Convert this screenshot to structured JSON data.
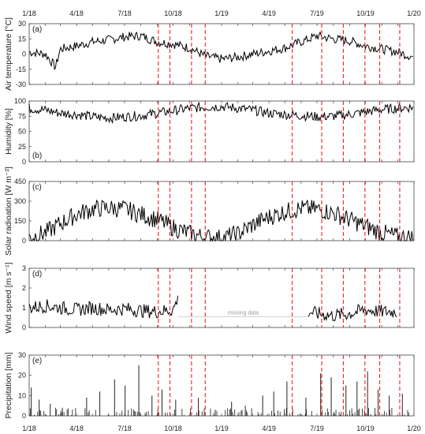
{
  "chart_data": {
    "type": "line",
    "x_tick_labels": [
      "1/18",
      "4/18",
      "7/18",
      "10/18",
      "1/19",
      "4/19",
      "7/19",
      "10/19",
      "1/20"
    ],
    "x_range": [
      "2018-01-01",
      "2020-01-01"
    ],
    "event_lines": {
      "color": "#e8232a",
      "dates": [
        "2018-09-03",
        "2018-09-25",
        "2018-11-05",
        "2018-12-01",
        "2019-05-15",
        "2019-07-10",
        "2019-08-20",
        "2019-09-30",
        "2019-10-28",
        "2019-12-05"
      ]
    },
    "panels": [
      {
        "id": "air_temp",
        "letter": "(a)",
        "ylabel": "Air temperature [°C]",
        "ylim": [
          -30,
          30
        ],
        "yticks": [
          "30",
          "15",
          "0",
          "-15",
          "-30"
        ],
        "style": "line",
        "series": {
          "x": [
            "2018-01-01",
            "2018-02-01",
            "2018-02-20",
            "2018-03-01",
            "2018-04-01",
            "2018-05-01",
            "2018-06-01",
            "2018-07-01",
            "2018-08-01",
            "2018-09-01",
            "2018-10-01",
            "2018-11-01",
            "2018-12-01",
            "2019-01-01",
            "2019-02-01",
            "2019-03-01",
            "2019-04-01",
            "2019-05-01",
            "2019-06-01",
            "2019-07-01",
            "2019-08-01",
            "2019-09-01",
            "2019-10-01",
            "2019-11-01",
            "2019-12-01",
            "2019-12-31"
          ],
          "y": [
            2,
            0,
            -13,
            5,
            8,
            12,
            14,
            17,
            18,
            12,
            10,
            6,
            -2,
            -5,
            -3,
            0,
            3,
            6,
            12,
            18,
            15,
            13,
            8,
            5,
            2,
            -3
          ]
        }
      },
      {
        "id": "humidity",
        "letter": "(b)",
        "ylabel": "Humidity [%]",
        "ylim": [
          0,
          100
        ],
        "yticks": [
          "100",
          "75",
          "50",
          "25",
          "0"
        ],
        "style": "line",
        "series": {
          "x": [
            "2018-01-01",
            "2018-02-01",
            "2018-03-01",
            "2018-04-01",
            "2018-05-01",
            "2018-06-01",
            "2018-07-01",
            "2018-08-01",
            "2018-09-01",
            "2018-10-01",
            "2018-11-01",
            "2018-12-01",
            "2019-01-01",
            "2019-02-01",
            "2019-03-01",
            "2019-04-01",
            "2019-05-01",
            "2019-06-01",
            "2019-07-01",
            "2019-08-01",
            "2019-09-01",
            "2019-10-01",
            "2019-11-01",
            "2019-12-01",
            "2019-12-31"
          ],
          "y": [
            88,
            85,
            80,
            78,
            74,
            72,
            74,
            76,
            80,
            84,
            88,
            90,
            91,
            88,
            85,
            80,
            78,
            76,
            74,
            75,
            78,
            82,
            86,
            88,
            90
          ]
        }
      },
      {
        "id": "solar",
        "letter": "(c)",
        "ylabel": "Solar radioation [W m⁻²]",
        "ylim": [
          0,
          450
        ],
        "yticks": [
          "450",
          "300",
          "150",
          "0"
        ],
        "style": "line",
        "series": {
          "x": [
            "2018-01-01",
            "2018-02-01",
            "2018-03-01",
            "2018-04-01",
            "2018-05-01",
            "2018-06-01",
            "2018-07-01",
            "2018-08-01",
            "2018-09-01",
            "2018-10-01",
            "2018-11-01",
            "2018-12-01",
            "2019-01-01",
            "2019-02-01",
            "2019-03-01",
            "2019-04-01",
            "2019-05-01",
            "2019-06-01",
            "2019-07-01",
            "2019-08-01",
            "2019-09-01",
            "2019-10-01",
            "2019-11-01",
            "2019-12-01",
            "2019-12-31"
          ],
          "y": [
            25,
            60,
            130,
            200,
            240,
            250,
            240,
            200,
            160,
            100,
            55,
            25,
            20,
            50,
            120,
            180,
            220,
            245,
            240,
            210,
            160,
            110,
            60,
            30,
            25
          ]
        }
      },
      {
        "id": "wind",
        "letter": "(d)",
        "ylabel": "Wind speed [m s⁻¹]",
        "ylim": [
          0,
          3
        ],
        "yticks": [
          "3",
          "2",
          "1",
          "0"
        ],
        "style": "line",
        "annotation": "missing data",
        "missing_range": [
          "2018-10-10",
          "2019-06-15"
        ],
        "series": {
          "x": [
            "2018-01-01",
            "2018-02-01",
            "2018-03-01",
            "2018-04-01",
            "2018-05-01",
            "2018-06-01",
            "2018-07-01",
            "2018-08-01",
            "2018-09-01",
            "2018-10-01",
            "2018-10-09",
            "2019-06-16",
            "2019-07-01",
            "2019-08-01",
            "2019-09-01",
            "2019-10-01",
            "2019-11-01",
            "2019-12-01"
          ],
          "y": [
            1.0,
            1.1,
            1.0,
            0.9,
            1.0,
            0.9,
            0.95,
            0.85,
            0.8,
            0.9,
            1.4,
            0.8,
            0.7,
            0.6,
            0.7,
            0.9,
            0.8,
            0.8
          ]
        }
      },
      {
        "id": "precip",
        "letter": "(e)",
        "ylabel": "Precipitation [mm]",
        "ylim": [
          0,
          30
        ],
        "yticks": [
          "30",
          "20",
          "10",
          "0"
        ],
        "style": "bar",
        "series": {
          "x": [
            "2018-01-05",
            "2018-01-20",
            "2018-02-10",
            "2018-03-05",
            "2018-04-20",
            "2018-05-15",
            "2018-06-12",
            "2018-07-02",
            "2018-07-28",
            "2018-08-22",
            "2018-09-10",
            "2018-10-06",
            "2018-11-18",
            "2018-12-20",
            "2019-01-20",
            "2019-02-15",
            "2019-03-20",
            "2019-04-10",
            "2019-05-05",
            "2019-06-10",
            "2019-07-08",
            "2019-07-28",
            "2019-08-25",
            "2019-09-15",
            "2019-10-05",
            "2019-10-25",
            "2019-11-15",
            "2019-12-10"
          ],
          "y": [
            14,
            8,
            6,
            4,
            9,
            12,
            18,
            15,
            25,
            10,
            13,
            8,
            9,
            3,
            7,
            5,
            10,
            12,
            17,
            9,
            21,
            19,
            15,
            17,
            22,
            13,
            10,
            11
          ]
        }
      }
    ]
  }
}
